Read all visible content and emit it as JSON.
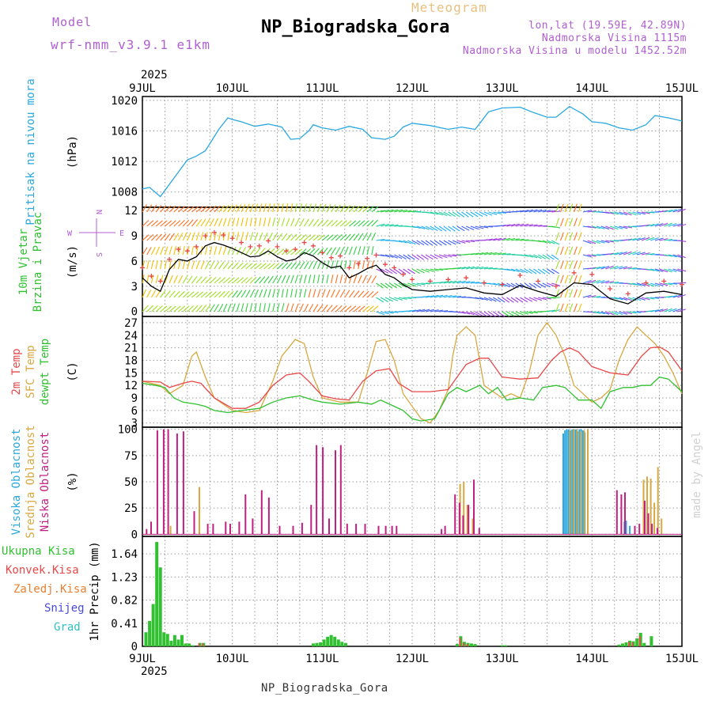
{
  "header": {
    "model_label": "Model",
    "model_name": "wrf-nmm_v3.9.1 e1km",
    "meteogram": "Meteogram",
    "station": "NP_Biogradska_Gora",
    "lonlat": "lon,lat (19.59E, 42.89N)",
    "elevation": "Nadmorska Visina 1115m",
    "model_elevation": "Nadmorska Visina u modelu 1452.52m"
  },
  "footer": {
    "station": "NP_Biogradska_Gora"
  },
  "credit": "made by Angel",
  "time_axis": {
    "year": "2025",
    "ticks": [
      "9JUL",
      "10JUL",
      "11JUL",
      "12JUL",
      "13JUL",
      "14JUL",
      "15JUL"
    ]
  },
  "colors": {
    "pressure": "#2aa8e0",
    "temp2m": "#e84848",
    "sfc": "#d8a840",
    "dew": "#30c030",
    "high_cloud": "#2aa8e0",
    "mid_cloud": "#d8a840",
    "low_cloud": "#c02080",
    "rain_total": "#30c030",
    "rain_conv": "#e84848",
    "rain_strat": "#e88030",
    "snow": "#4848e0",
    "hail": "#30c0c0"
  },
  "chart_data": [
    {
      "type": "line",
      "panel": "pressure",
      "ylabel_lines": [
        "Pritisak na nivou mora"
      ],
      "unit": "(hPa)",
      "yticks": [
        1008,
        1012,
        1016,
        1020
      ],
      "ylim": [
        1006,
        1020.5
      ],
      "series": [
        {
          "x": [
            0,
            0.08,
            0.2,
            0.35,
            0.5,
            0.6,
            0.7,
            0.85,
            0.95,
            1.0,
            1.1,
            1.25,
            1.4,
            1.55,
            1.65,
            1.75,
            1.85,
            1.9,
            2.0,
            2.15,
            2.3,
            2.45,
            2.55,
            2.7,
            2.8,
            2.9,
            3.0,
            3.2,
            3.4,
            3.55,
            3.7,
            3.85,
            4.0,
            4.2,
            4.35,
            4.5,
            4.6,
            4.75,
            4.9,
            5.0,
            5.15,
            5.3,
            5.45,
            5.6,
            5.7,
            5.85,
            6.0
          ],
          "values": [
            1008.4,
            1008.6,
            1007.4,
            1009.8,
            1012.2,
            1012.7,
            1013.4,
            1016.2,
            1017.7,
            1017.5,
            1017.2,
            1016.6,
            1016.9,
            1016.5,
            1014.9,
            1015.0,
            1016.0,
            1016.8,
            1016.4,
            1016.1,
            1016.6,
            1016.2,
            1015.1,
            1014.9,
            1015.3,
            1016.5,
            1017.0,
            1016.7,
            1016.2,
            1016.5,
            1016.2,
            1018.5,
            1019.0,
            1019.1,
            1018.4,
            1017.8,
            1017.8,
            1019.2,
            1018.2,
            1017.2,
            1017.0,
            1016.4,
            1016.1,
            1016.8,
            1018.0,
            1017.7,
            1017.3
          ]
        }
      ]
    },
    {
      "type": "line",
      "panel": "wind",
      "ylabel_lines": [
        "10m Vjetar",
        "Brzina i Pravac"
      ],
      "unit": "(m/s)",
      "yticks": [
        0,
        3,
        6,
        9,
        12
      ],
      "ylim": [
        -0.6,
        12.4
      ],
      "compass": [
        "N",
        "W",
        "E",
        "S"
      ],
      "series": [
        {
          "name": "speed",
          "x": [
            0,
            0.1,
            0.2,
            0.3,
            0.4,
            0.5,
            0.6,
            0.7,
            0.8,
            0.9,
            1.0,
            1.1,
            1.2,
            1.3,
            1.4,
            1.5,
            1.6,
            1.7,
            1.8,
            1.9,
            2.0,
            2.1,
            2.2,
            2.3,
            2.4,
            2.5,
            2.6,
            2.7,
            2.8,
            2.9,
            3.0,
            3.2,
            3.4,
            3.6,
            3.8,
            4.0,
            4.2,
            4.4,
            4.6,
            4.8,
            5.0,
            5.2,
            5.4,
            5.6,
            5.8,
            6.0
          ],
          "values": [
            4.0,
            3.0,
            2.4,
            5.0,
            6.2,
            6.0,
            6.5,
            7.8,
            8.2,
            7.9,
            7.5,
            7.0,
            6.5,
            6.6,
            7.2,
            6.5,
            6.0,
            6.2,
            7.0,
            6.6,
            5.8,
            5.2,
            5.4,
            4.0,
            4.5,
            5.1,
            5.5,
            4.4,
            4.0,
            3.2,
            2.6,
            2.4,
            2.6,
            2.8,
            2.2,
            2.0,
            3.1,
            2.4,
            1.8,
            3.4,
            3.2,
            1.5,
            0.9,
            2.2,
            2.4,
            2.0
          ]
        }
      ]
    },
    {
      "type": "line",
      "panel": "temperature",
      "ylabel_lines": [
        "2m Temp",
        "SFC Temp",
        "dewpt Temp"
      ],
      "unit": "(C)",
      "yticks": [
        3,
        6,
        9,
        12,
        15,
        18,
        21,
        24,
        27
      ],
      "ylim": [
        2,
        28.5
      ],
      "series": [
        {
          "name": "2m Temp",
          "x": [
            0,
            0.2,
            0.3,
            0.45,
            0.55,
            0.65,
            0.8,
            1.0,
            1.15,
            1.3,
            1.45,
            1.6,
            1.75,
            1.85,
            2.0,
            2.15,
            2.3,
            2.45,
            2.6,
            2.75,
            2.85,
            3.0,
            3.2,
            3.4,
            3.5,
            3.6,
            3.75,
            3.85,
            4.0,
            4.2,
            4.4,
            4.55,
            4.65,
            4.75,
            4.85,
            5.0,
            5.2,
            5.4,
            5.55,
            5.65,
            5.75,
            5.85,
            6.0
          ],
          "values": [
            13,
            12.8,
            11.5,
            12.5,
            13,
            12.5,
            9,
            6.5,
            6.5,
            8,
            12,
            14.5,
            15,
            13,
            9.5,
            8.8,
            8.5,
            13,
            15.5,
            16,
            12.5,
            10.5,
            10.5,
            11,
            14,
            17,
            18.5,
            18.5,
            14,
            13.5,
            13.8,
            18,
            20,
            21,
            20,
            16.5,
            15,
            14.5,
            19,
            21,
            21.2,
            20,
            15.5
          ]
        },
        {
          "name": "SFC Temp",
          "x": [
            0,
            0.2,
            0.3,
            0.45,
            0.55,
            0.6,
            0.7,
            0.8,
            1.0,
            1.15,
            1.3,
            1.45,
            1.55,
            1.7,
            1.8,
            1.9,
            2.0,
            2.2,
            2.4,
            2.5,
            2.6,
            2.7,
            2.8,
            2.9,
            3.0,
            3.1,
            3.2,
            3.3,
            3.4,
            3.45,
            3.5,
            3.6,
            3.7,
            3.8,
            4.0,
            4.1,
            4.2,
            4.3,
            4.4,
            4.5,
            4.6,
            4.7,
            4.8,
            4.9,
            5.0,
            5.1,
            5.2,
            5.3,
            5.4,
            5.5,
            5.6,
            5.7,
            5.8,
            5.9,
            6.0
          ],
          "values": [
            13,
            12,
            10,
            12,
            19,
            20,
            14,
            9,
            6,
            5.5,
            6,
            13,
            19,
            23,
            22,
            14,
            9,
            8,
            8,
            15,
            22.5,
            23,
            18,
            10,
            7,
            4,
            3,
            6,
            11,
            19,
            24,
            26,
            24,
            12,
            9,
            10,
            9,
            15,
            24,
            27,
            24,
            19,
            12,
            10,
            8,
            9,
            11,
            18,
            23,
            26,
            24,
            22,
            19,
            15,
            10
          ]
        },
        {
          "name": "dewpt Temp",
          "x": [
            0,
            0.15,
            0.25,
            0.35,
            0.45,
            0.6,
            0.7,
            0.8,
            0.95,
            1.1,
            1.3,
            1.45,
            1.6,
            1.75,
            1.9,
            2.0,
            2.2,
            2.4,
            2.55,
            2.65,
            2.8,
            2.9,
            3.0,
            3.1,
            3.25,
            3.4,
            3.5,
            3.6,
            3.75,
            3.85,
            3.95,
            4.05,
            4.2,
            4.35,
            4.45,
            4.6,
            4.7,
            4.85,
            5.0,
            5.1,
            5.2,
            5.35,
            5.45,
            5.55,
            5.65,
            5.75,
            5.85,
            6.0
          ],
          "values": [
            12.5,
            12,
            11.5,
            9,
            8,
            7.5,
            7,
            6,
            5.5,
            6,
            6.5,
            8,
            9,
            9.5,
            8.5,
            8,
            7.5,
            8,
            7.5,
            8.5,
            7,
            6,
            4,
            3.5,
            4,
            10,
            11.5,
            10.5,
            12,
            10,
            11.5,
            8.5,
            9,
            8.5,
            11.5,
            12,
            11.5,
            8.5,
            8.5,
            6.5,
            10.5,
            11.5,
            11.5,
            12,
            12,
            14,
            13.5,
            10.5
          ]
        }
      ]
    },
    {
      "type": "bar",
      "panel": "clouds",
      "ylabel_lines": [
        "Visoka Oblacnost",
        "Srednja Oblacnost",
        "Niska Oblacnost"
      ],
      "unit": "(%)",
      "yticks": [
        0,
        25,
        50,
        75,
        100
      ],
      "ylim": [
        -2,
        102
      ],
      "series": [
        {
          "name": "Visoka Oblacnost",
          "x": [
            4.68,
            4.7,
            4.72,
            4.74,
            4.76,
            4.78,
            4.8,
            4.82,
            4.84,
            4.86,
            4.88,
            4.9,
            4.92,
            5.36,
            5.38,
            5.42
          ],
          "values": [
            96,
            99,
            100,
            100,
            99,
            100,
            100,
            100,
            98,
            100,
            100,
            99,
            97,
            12,
            13,
            8
          ]
        },
        {
          "name": "Srednja Oblacnost",
          "x": [
            0.3,
            0.62,
            3.52,
            3.56,
            3.6,
            3.66,
            4.74,
            4.78,
            4.82,
            4.86,
            4.9,
            4.94,
            5.56,
            5.6,
            5.64,
            5.68,
            5.72,
            5.76
          ],
          "values": [
            8,
            45,
            48,
            50,
            28,
            15,
            99,
            100,
            100,
            98,
            99,
            100,
            52,
            55,
            53,
            30,
            64,
            15
          ]
        },
        {
          "name": "Niska Oblacnost",
          "x": [
            0.02,
            0.07,
            0.14,
            0.21,
            0.26,
            0.36,
            0.43,
            0.55,
            0.7,
            0.76,
            0.9,
            0.95,
            1.05,
            1.12,
            1.2,
            1.3,
            1.38,
            1.5,
            1.65,
            1.75,
            1.85,
            1.91,
            1.98,
            2.05,
            2.12,
            2.18,
            2.25,
            2.35,
            2.45,
            2.6,
            2.68,
            2.75,
            2.8,
            3.3,
            3.34,
            3.45,
            3.5,
            3.54,
            3.6,
            3.66,
            3.72,
            5.25,
            5.3,
            5.34,
            5.45,
            5.5,
            5.56,
            5.6,
            5.64,
            5.7
          ],
          "values": [
            5,
            12,
            99,
            100,
            100,
            96,
            98,
            22,
            10,
            10,
            12,
            10,
            12,
            38,
            15,
            42,
            35,
            8,
            8,
            11,
            28,
            85,
            83,
            15,
            80,
            85,
            10,
            10,
            10,
            8,
            8,
            8,
            8,
            5,
            8,
            38,
            30,
            18,
            28,
            52,
            6,
            42,
            38,
            40,
            8,
            10,
            32,
            20,
            10,
            6
          ]
        }
      ]
    },
    {
      "type": "bar",
      "panel": "precip",
      "ylabel_lines": [
        "Ukupna Kisa",
        "Konvek.Kisa",
        "Zaledj.Kisa",
        "Snijeg",
        "Grad"
      ],
      "unit": "1hr Precip (mm)",
      "yticks": [
        "0",
        "0.41",
        "0.82",
        "1.23",
        "1.64"
      ],
      "ylim": [
        0,
        1.95
      ],
      "series": [
        {
          "name": "Ukupna Kisa",
          "x": [
            0.04,
            0.08,
            0.12,
            0.16,
            0.2,
            0.24,
            0.28,
            0.32,
            0.36,
            0.4,
            0.44,
            0.48,
            0.52,
            0.56,
            0.64,
            0.68,
            1.9,
            1.94,
            1.98,
            2.02,
            2.06,
            2.1,
            2.14,
            2.18,
            2.22,
            2.26,
            3.5,
            3.54,
            3.58,
            3.62,
            3.66,
            3.7,
            4.0,
            4.04,
            5.3,
            5.34,
            5.38,
            5.42,
            5.46,
            5.5,
            5.54,
            5.58,
            5.66
          ],
          "values": [
            0.25,
            0.45,
            0.75,
            1.85,
            1.4,
            0.25,
            0.22,
            0.1,
            0.2,
            0.12,
            0.2,
            0.05,
            0.05,
            0.02,
            0.06,
            0.06,
            0.05,
            0.06,
            0.07,
            0.12,
            0.17,
            0.2,
            0.17,
            0.12,
            0.08,
            0.06,
            0.04,
            0.18,
            0.08,
            0.06,
            0.05,
            0.04,
            0.02,
            0.02,
            0.03,
            0.05,
            0.07,
            0.1,
            0.09,
            0.14,
            0.24,
            0.06,
            0.18
          ]
        },
        {
          "name": "Konvek.Kisa",
          "x": [
            0.64,
            0.68,
            3.54,
            3.58,
            3.62,
            5.42,
            5.46,
            5.54
          ],
          "values": [
            0.05,
            0.05,
            0.15,
            0.06,
            0.04,
            0.08,
            0.07,
            0.18
          ]
        }
      ],
      "legend": [
        "Ukupna Kisa",
        "Konvek.Kisa",
        "Zaledj.Kisa",
        "Snijeg",
        "Grad"
      ]
    }
  ]
}
